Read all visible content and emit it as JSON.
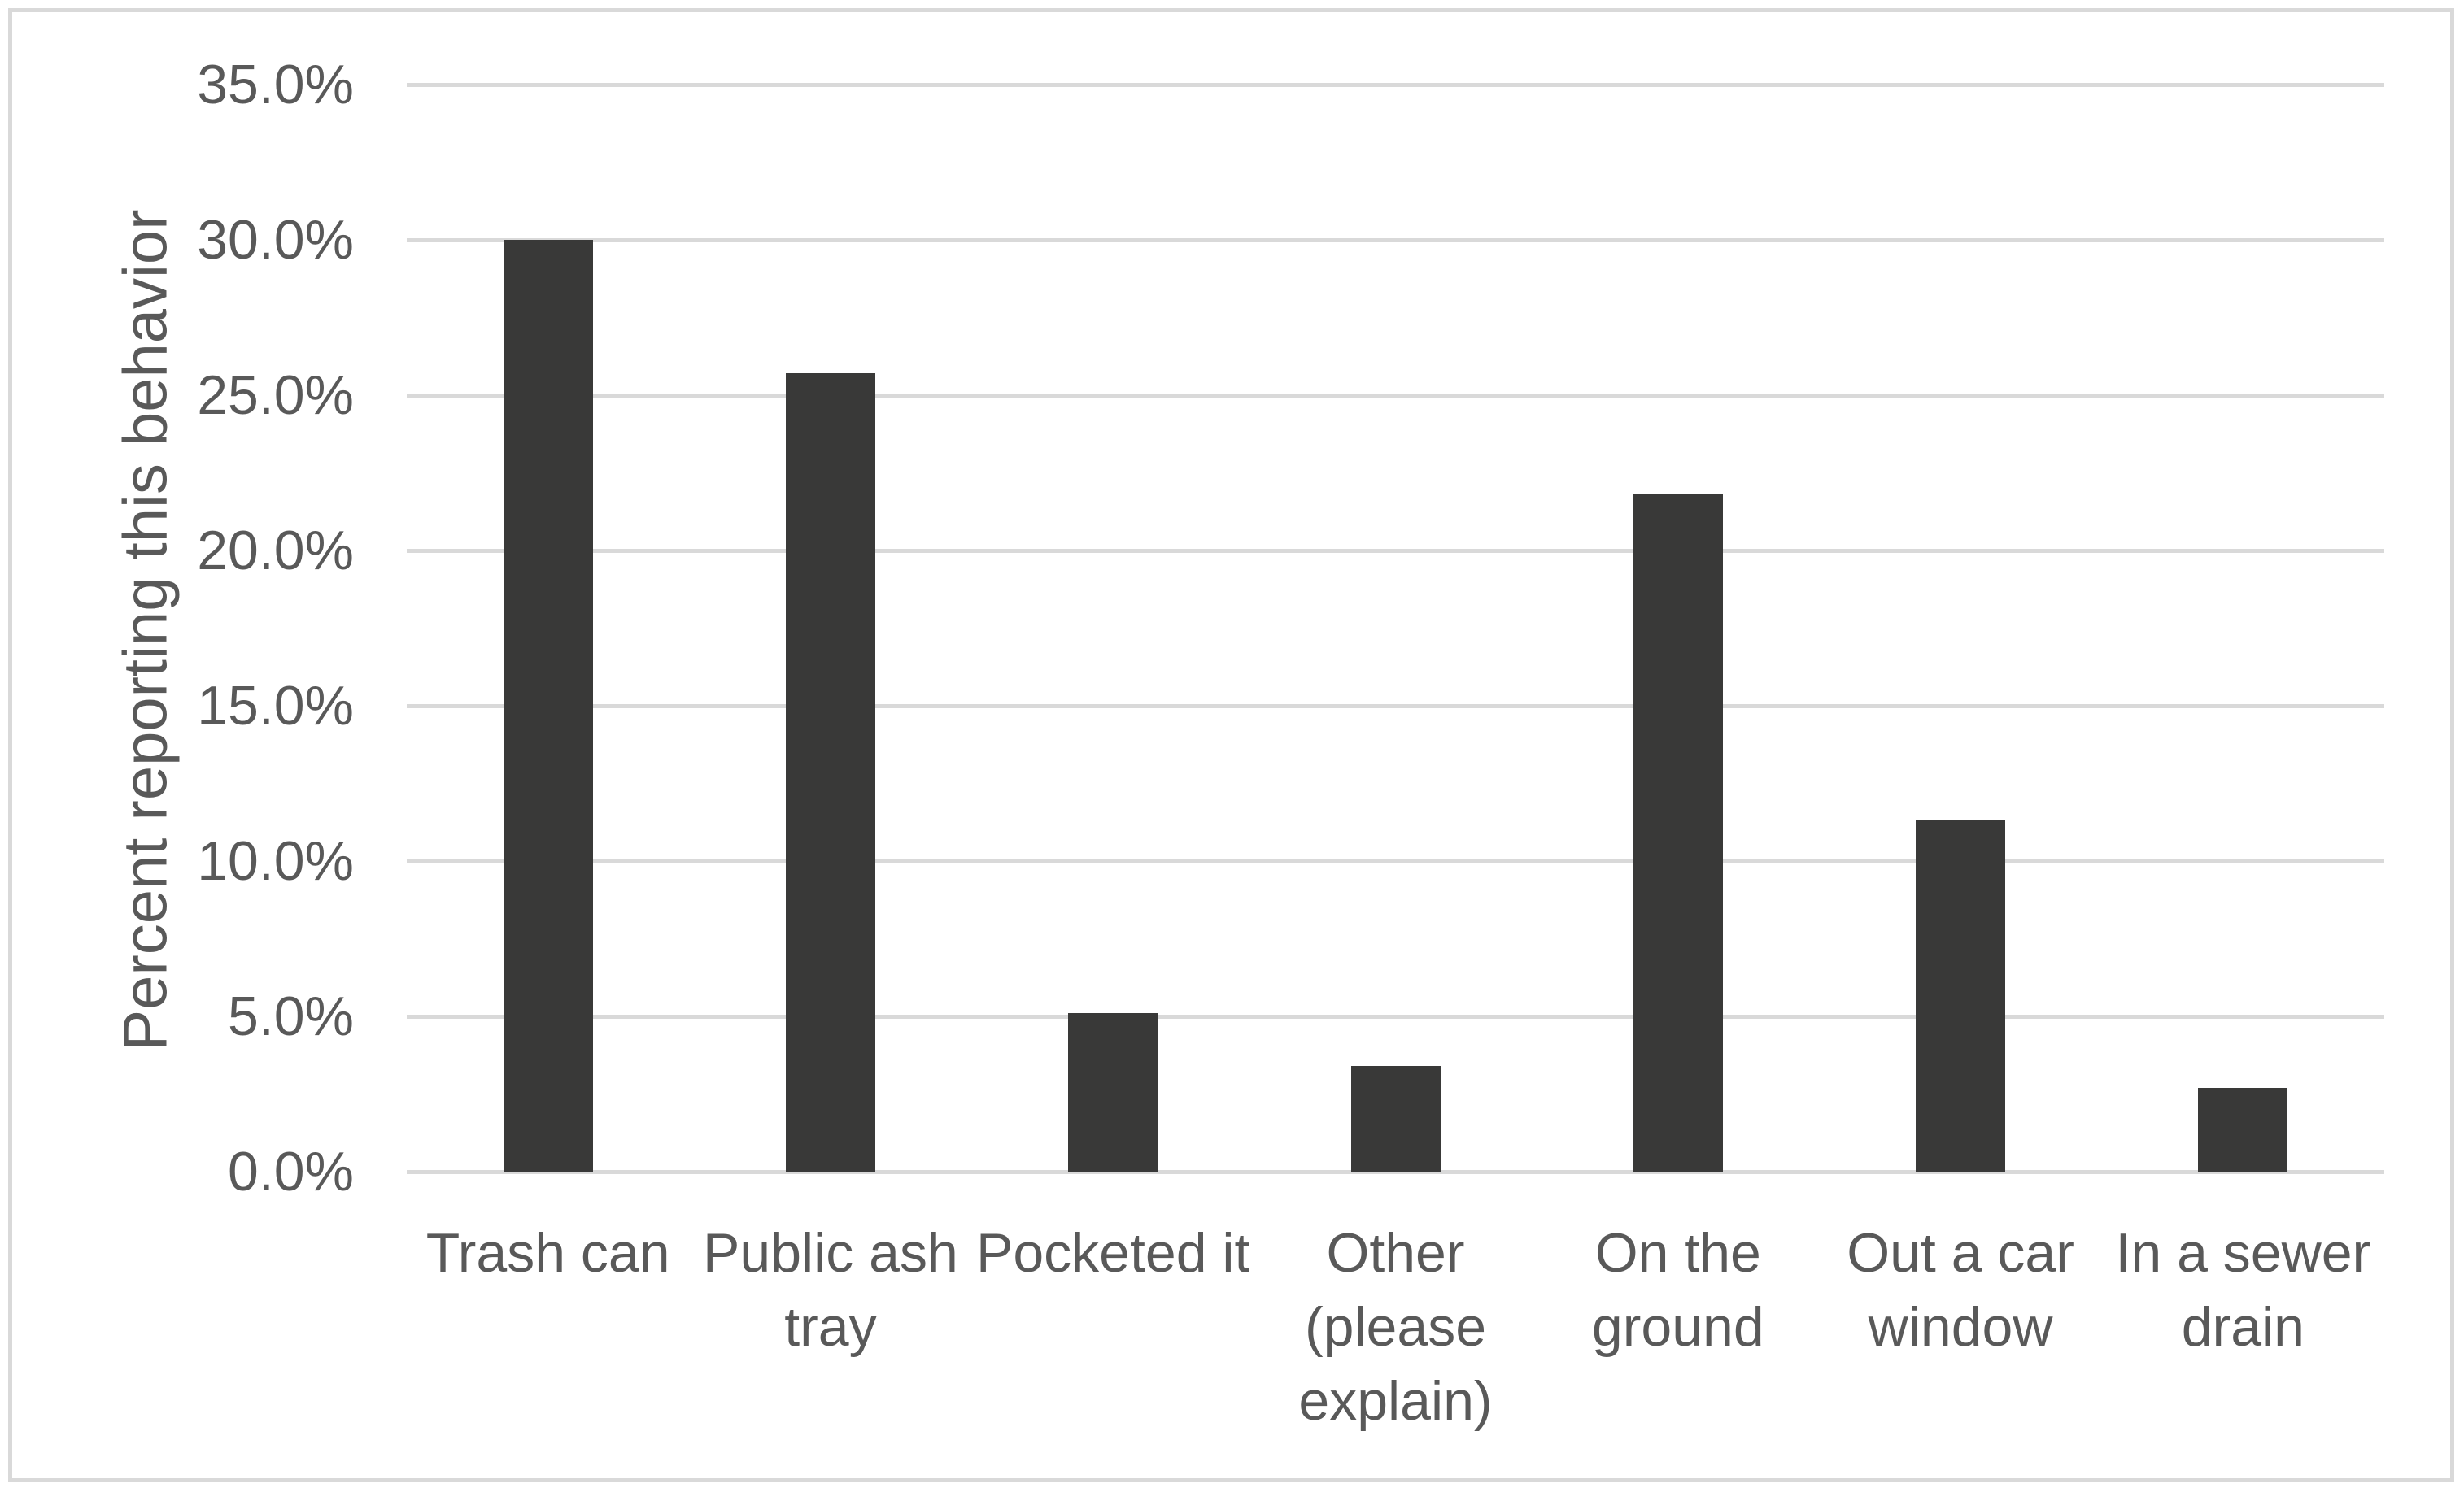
{
  "chart_data": {
    "type": "bar",
    "ylabel": "Percent reporting this behavior",
    "xlabel": "",
    "categories": [
      "Trash can",
      "Public ash tray",
      "Pocketed it",
      "Other (please explain)",
      "On the ground",
      "Out a car window",
      "In a sewer drain"
    ],
    "category_display_lines": [
      [
        "Trash can"
      ],
      [
        "Public ash",
        "tray"
      ],
      [
        "Pocketed it"
      ],
      [
        "Other",
        "(please",
        "explain)"
      ],
      [
        "On the",
        "ground"
      ],
      [
        "Out a car",
        "window"
      ],
      [
        "In a sewer",
        "drain"
      ]
    ],
    "values_percent": [
      30.0,
      25.7,
      5.1,
      3.4,
      21.8,
      11.3,
      2.7
    ],
    "ylim": [
      0,
      35
    ],
    "ytick_labels": [
      "0.0%",
      "5.0%",
      "10.0%",
      "15.0%",
      "20.0%",
      "25.0%",
      "30.0%",
      "35.0%"
    ],
    "grid": "horizontal gridlines on",
    "legend": "none"
  },
  "colors": {
    "bar": "#393938",
    "gridline": "#d9d9d9",
    "text": "#595959",
    "frame_border": "#d9d9d9",
    "background": "#ffffff"
  }
}
